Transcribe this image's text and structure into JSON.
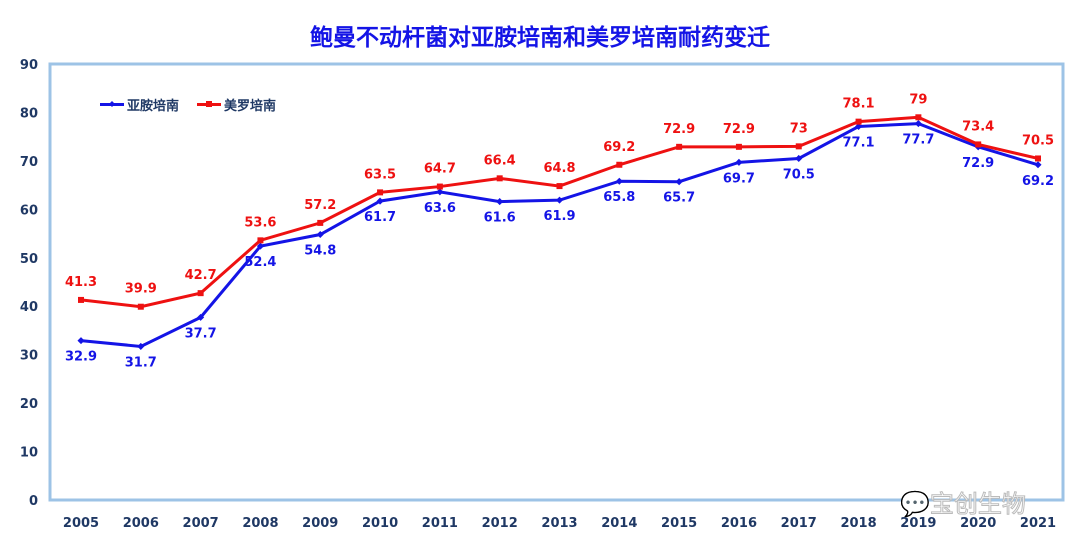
{
  "chart_data": {
    "type": "line",
    "title": "鲍曼不动杆菌对亚胺培南和美罗培南耐药变迁",
    "categories": [
      "2005",
      "2006",
      "2007",
      "2008",
      "2009",
      "2010",
      "2011",
      "2012",
      "2013",
      "2014",
      "2015",
      "2016",
      "2017",
      "2018",
      "2019",
      "2020",
      "2021"
    ],
    "series": [
      {
        "name": "亚胺培南",
        "color": "#1414e6",
        "marker": "diamond",
        "values": [
          32.9,
          31.7,
          37.7,
          52.4,
          54.8,
          61.7,
          63.6,
          61.6,
          61.9,
          65.8,
          65.7,
          69.7,
          70.5,
          77.1,
          77.7,
          72.9,
          69.2
        ]
      },
      {
        "name": "美罗培南",
        "color": "#ee1111",
        "marker": "square",
        "values": [
          41.3,
          39.9,
          42.7,
          53.6,
          57.2,
          63.5,
          64.7,
          66.4,
          64.8,
          69.2,
          72.9,
          72.9,
          73,
          78.1,
          79,
          73.4,
          70.5
        ]
      }
    ],
    "ylim": [
      0,
      90
    ],
    "yticks": [
      0,
      10,
      20,
      30,
      40,
      50,
      60,
      70,
      80,
      90
    ],
    "grid": false,
    "legend": "top-left",
    "data_labels": true,
    "axis_color": "#9dc3e6"
  },
  "watermark": "宝创生物"
}
